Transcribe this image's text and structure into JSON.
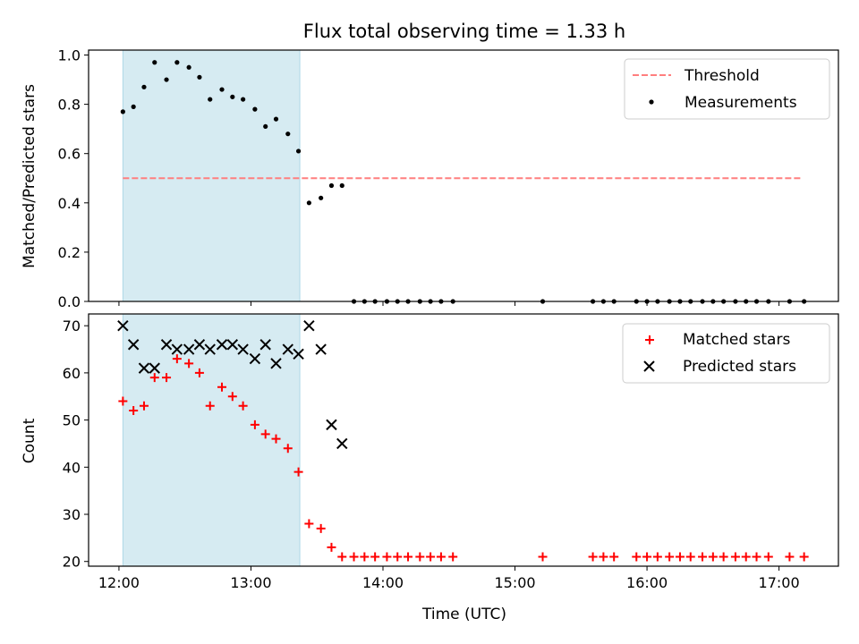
{
  "chart_data": [
    {
      "type": "scatter",
      "title": "Flux total observing time = 1.33 h",
      "ylabel": "Matched/Predicted stars",
      "xlim": [
        11.77,
        17.45
      ],
      "ylim": [
        0,
        1.02
      ],
      "yticks": [
        0,
        0.2,
        0.4,
        0.6,
        0.8,
        1.0
      ],
      "ytick_labels": [
        "0.0",
        "0.2",
        "0.4",
        "0.6",
        "0.8",
        "1.0"
      ],
      "xticks": [
        12,
        13,
        14,
        15,
        16,
        17
      ],
      "shaded_region": [
        12.03,
        13.37
      ],
      "threshold": {
        "label": "Threshold",
        "value": 0.5,
        "x_range": [
          12.03,
          17.17
        ],
        "color": "#ff7f7f"
      },
      "legend_location": "upper right",
      "series": [
        {
          "name": "Measurements",
          "marker": "dot",
          "color": "#000000",
          "x": [
            12.03,
            12.11,
            12.19,
            12.27,
            12.36,
            12.44,
            12.53,
            12.61,
            12.69,
            12.78,
            12.86,
            12.94,
            13.03,
            13.11,
            13.19,
            13.28,
            13.36,
            13.44,
            13.53,
            13.61,
            13.69,
            13.78,
            13.86,
            13.94,
            14.03,
            14.11,
            14.19,
            14.28,
            14.36,
            14.44,
            14.53,
            15.21,
            15.59,
            15.67,
            15.75,
            15.92,
            16.0,
            16.08,
            16.17,
            16.25,
            16.33,
            16.42,
            16.5,
            16.58,
            16.67,
            16.75,
            16.83,
            16.92,
            17.08,
            17.19
          ],
          "y": [
            0.77,
            0.79,
            0.87,
            0.97,
            0.9,
            0.97,
            0.95,
            0.91,
            0.82,
            0.86,
            0.83,
            0.82,
            0.78,
            0.71,
            0.74,
            0.68,
            0.61,
            0.4,
            0.42,
            0.47,
            0.47,
            0,
            0,
            0,
            0,
            0,
            0,
            0,
            0,
            0,
            0,
            0,
            0,
            0,
            0,
            0,
            0,
            0,
            0,
            0,
            0,
            0,
            0,
            0,
            0,
            0,
            0,
            0,
            0,
            0
          ]
        }
      ]
    },
    {
      "type": "scatter",
      "ylabel": "Count",
      "xlabel": "Time (UTC)",
      "xlim": [
        11.77,
        17.45
      ],
      "ylim": [
        19,
        72.5
      ],
      "yticks": [
        20,
        30,
        40,
        50,
        60,
        70
      ],
      "xticks": [
        12,
        13,
        14,
        15,
        16,
        17
      ],
      "xtick_labels": [
        "12:00",
        "13:00",
        "14:00",
        "15:00",
        "16:00",
        "17:00"
      ],
      "shaded_region": [
        12.03,
        13.37
      ],
      "legend_location": "upper right",
      "series": [
        {
          "name": "Matched stars",
          "marker": "plus",
          "color": "#ff0000",
          "x": [
            12.03,
            12.11,
            12.19,
            12.27,
            12.36,
            12.44,
            12.53,
            12.61,
            12.69,
            12.78,
            12.86,
            12.94,
            13.03,
            13.11,
            13.19,
            13.28,
            13.36,
            13.44,
            13.53,
            13.61,
            13.69,
            13.78,
            13.86,
            13.94,
            14.03,
            14.11,
            14.19,
            14.28,
            14.36,
            14.44,
            14.53,
            15.21,
            15.59,
            15.67,
            15.75,
            15.92,
            16.0,
            16.08,
            16.17,
            16.25,
            16.33,
            16.42,
            16.5,
            16.58,
            16.67,
            16.75,
            16.83,
            16.92,
            17.08,
            17.19
          ],
          "y": [
            54,
            52,
            53,
            59,
            59,
            63,
            62,
            60,
            53,
            57,
            55,
            53,
            49,
            47,
            46,
            44,
            39,
            28,
            27,
            23,
            21,
            21,
            21,
            21,
            21,
            21,
            21,
            21,
            21,
            21,
            21,
            21,
            21,
            21,
            21,
            21,
            21,
            21,
            21,
            21,
            21,
            21,
            21,
            21,
            21,
            21,
            21,
            21,
            21,
            21
          ]
        },
        {
          "name": "Predicted stars",
          "marker": "x",
          "color": "#000000",
          "x": [
            12.03,
            12.11,
            12.19,
            12.27,
            12.36,
            12.44,
            12.53,
            12.61,
            12.69,
            12.78,
            12.86,
            12.94,
            13.03,
            13.11,
            13.19,
            13.28,
            13.36,
            13.44,
            13.53,
            13.61,
            13.69
          ],
          "y": [
            70,
            66,
            61,
            61,
            66,
            65,
            65,
            66,
            65,
            66,
            66,
            65,
            63,
            66,
            62,
            65,
            64,
            70,
            65,
            49,
            45
          ]
        }
      ]
    }
  ]
}
